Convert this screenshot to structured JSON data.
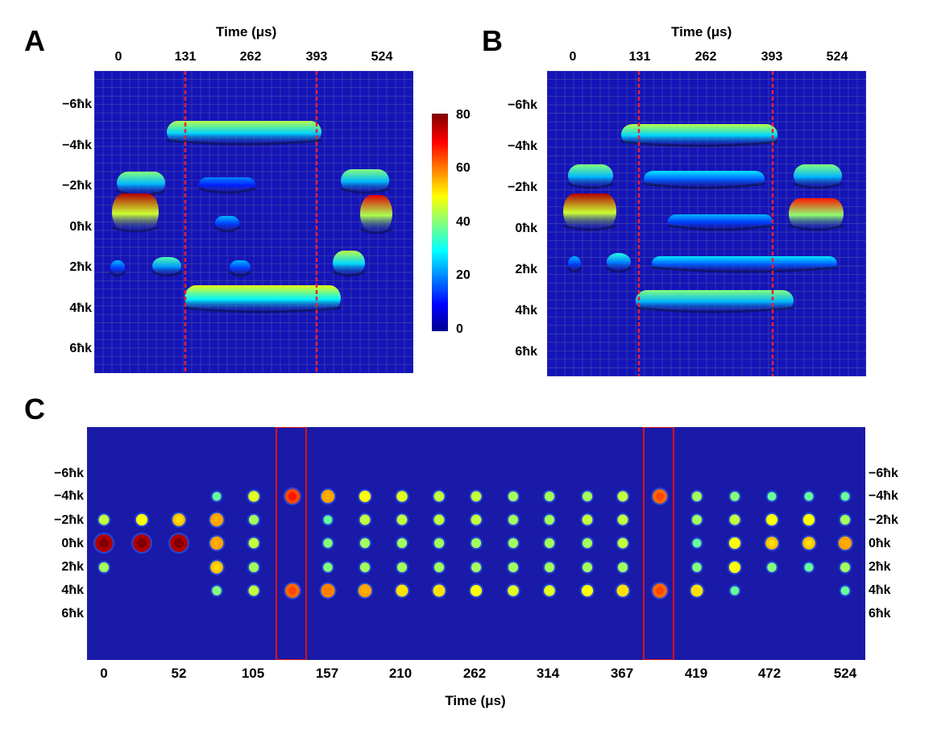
{
  "panels": {
    "a": {
      "letter": "A",
      "title": "Time (μs)",
      "xticks": [
        "0",
        "131",
        "262",
        "393",
        "524"
      ],
      "ylabels": [
        "−6ħk",
        "−4ħk",
        "−2ħk",
        "0ħk",
        "2ħk",
        "4ħk",
        "6ħk"
      ]
    },
    "b": {
      "letter": "B",
      "title": "Time (μs)",
      "xticks": [
        "0",
        "131",
        "262",
        "393",
        "524"
      ],
      "ylabels": [
        "−6ħk",
        "−4ħk",
        "−2ħk",
        "0ħk",
        "2ħk",
        "4ħk",
        "6ħk"
      ]
    },
    "c": {
      "letter": "C",
      "xlabel": "Time (μs)",
      "xticks": [
        "0",
        "52",
        "105",
        "157",
        "210",
        "262",
        "314",
        "367",
        "419",
        "472",
        "524"
      ],
      "ylabels": [
        "−6ħk",
        "−4ħk",
        "−2ħk",
        "0ħk",
        "2ħk",
        "4ħk",
        "6ħk"
      ]
    }
  },
  "colorbar": {
    "ticks": [
      "80",
      "60",
      "40",
      "20",
      "0"
    ],
    "range": [
      0,
      80
    ],
    "colormap": [
      "#00008f",
      "#0000ff",
      "#00ffff",
      "#ffff00",
      "#ff0000",
      "#800000"
    ]
  },
  "colors": {
    "background": "#1414b8",
    "marker_line": "#e8203a",
    "highlight_box": "#e01010"
  },
  "chart_data": [
    {
      "type": "heatmap",
      "panel": "A",
      "x_ticks": [
        0,
        131,
        262,
        393,
        524
      ],
      "y_ticks": [
        -6,
        -4,
        -2,
        0,
        2,
        4,
        6
      ],
      "markers_x": [
        131,
        393
      ]
    },
    {
      "type": "heatmap",
      "panel": "B",
      "x_ticks": [
        0,
        131,
        262,
        393,
        524
      ],
      "y_ticks": [
        -6,
        -4,
        -2,
        0,
        2,
        4,
        6
      ],
      "markers_x": [
        131,
        393
      ]
    },
    {
      "type": "heatmap",
      "panel": "C",
      "x_ticks": [
        0,
        52,
        105,
        157,
        210,
        262,
        314,
        367,
        419,
        472,
        524
      ],
      "y_ticks": [
        -6,
        -4,
        -2,
        0,
        2,
        4,
        6
      ],
      "highlight_x": [
        131,
        393
      ]
    }
  ]
}
